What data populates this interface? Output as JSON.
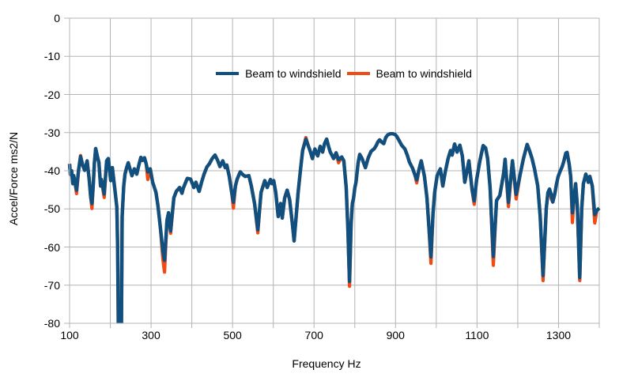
{
  "chart_data": {
    "type": "line",
    "title": "",
    "xlabel": "Frequency Hz",
    "ylabel": "Accel/Force ms2/N",
    "xlim": [
      100,
      1400
    ],
    "ylim": [
      -80,
      0
    ],
    "x_grid_step": 100,
    "y_grid_step": 10,
    "x_ticks": [
      100,
      300,
      500,
      700,
      900,
      1100,
      1300
    ],
    "y_ticks": [
      0,
      -10,
      -20,
      -30,
      -40,
      -50,
      -60,
      -70,
      -80
    ],
    "grid": true,
    "legend_position": "top-center",
    "grid_color": "#b4b4b4",
    "x": [
      100,
      102,
      105,
      108,
      110,
      114,
      117,
      122,
      127,
      132,
      137,
      143,
      148,
      152,
      155,
      158,
      161,
      164,
      169,
      172,
      176,
      178,
      185,
      191,
      195,
      201,
      205,
      211,
      216,
      218,
      220,
      227,
      229,
      233,
      236,
      240,
      244,
      249,
      253,
      259,
      265,
      270,
      275,
      279,
      284,
      288,
      292,
      298,
      304,
      312,
      317,
      323,
      329,
      333,
      339,
      343,
      348,
      356,
      362,
      370,
      376,
      379,
      385,
      389,
      397,
      405,
      410,
      418,
      424,
      430,
      437,
      443,
      450,
      457,
      463,
      469,
      476,
      482,
      486,
      492,
      498,
      502,
      507,
      511,
      519,
      525,
      531,
      540,
      546,
      554,
      562,
      570,
      579,
      585,
      593,
      597,
      601,
      606,
      612,
      618,
      622,
      628,
      634,
      640,
      647,
      651,
      656,
      661,
      667,
      672,
      680,
      686,
      690,
      696,
      702,
      709,
      715,
      721,
      726,
      731,
      736,
      740,
      748,
      754,
      760,
      768,
      773,
      779,
      783,
      787,
      791,
      794,
      797,
      800,
      803,
      808,
      812,
      818,
      826,
      833,
      840,
      848,
      853,
      857,
      861,
      866,
      871,
      876,
      881,
      887,
      893,
      899,
      903,
      909,
      915,
      923,
      929,
      934,
      942,
      948,
      952,
      958,
      963,
      971,
      977,
      982,
      987,
      992,
      996,
      1002,
      1010,
      1016,
      1022,
      1029,
      1035,
      1039,
      1045,
      1051,
      1058,
      1064,
      1070,
      1080,
      1088,
      1093,
      1099,
      1107,
      1115,
      1121,
      1126,
      1132,
      1140,
      1148,
      1156,
      1165,
      1169,
      1177,
      1187,
      1196,
      1206,
      1214,
      1223,
      1229,
      1235,
      1241,
      1249,
      1255,
      1262,
      1270,
      1274,
      1278,
      1282,
      1286,
      1291,
      1295,
      1299,
      1303,
      1309,
      1313,
      1318,
      1321,
      1326,
      1330,
      1334,
      1338,
      1342,
      1346,
      1352,
      1357,
      1361,
      1367,
      1373,
      1377,
      1383,
      1389,
      1394,
      1400
    ],
    "series": [
      {
        "name": "Beam to windshield",
        "color": "#11507e",
        "values": [
          -38.2,
          -41.0,
          -40.0,
          -43.4,
          -41.3,
          -43.5,
          -45.1,
          -40.0,
          -36.3,
          -38.5,
          -39.9,
          -37.4,
          -42.0,
          -47.0,
          -48.6,
          -44.0,
          -38.0,
          -34.2,
          -36.6,
          -37.8,
          -44.0,
          -42.3,
          -46.1,
          -37.4,
          -36.8,
          -42.6,
          -39.2,
          -44.7,
          -49.6,
          -60.0,
          -84.0,
          -84.0,
          -52.0,
          -44.0,
          -40.9,
          -39.2,
          -37.9,
          -39.8,
          -41.3,
          -39.5,
          -40.9,
          -38.5,
          -36.5,
          -37.3,
          -36.6,
          -38.2,
          -40.3,
          -39.5,
          -43.0,
          -45.7,
          -49.2,
          -55.0,
          -61.0,
          -63.5,
          -53.0,
          -51.0,
          -55.8,
          -47.1,
          -45.4,
          -44.4,
          -45.9,
          -44.6,
          -43.0,
          -42.0,
          -42.2,
          -44.4,
          -43.0,
          -45.4,
          -43.0,
          -40.9,
          -39.0,
          -38.2,
          -36.8,
          -35.9,
          -37.2,
          -38.9,
          -37.4,
          -39.2,
          -38.5,
          -41.5,
          -45.7,
          -48.3,
          -44.0,
          -42.3,
          -40.3,
          -41.0,
          -41.5,
          -41.3,
          -44.0,
          -48.6,
          -55.5,
          -45.7,
          -42.6,
          -44.4,
          -42.3,
          -43.4,
          -42.6,
          -45.7,
          -52.0,
          -48.6,
          -52.4,
          -47.1,
          -45.1,
          -47.5,
          -54.0,
          -58.4,
          -52.0,
          -45.7,
          -39.5,
          -34.7,
          -31.7,
          -33.5,
          -34.7,
          -36.8,
          -34.3,
          -36.1,
          -33.6,
          -35.1,
          -32.8,
          -31.7,
          -33.8,
          -35.1,
          -36.8,
          -35.3,
          -37.1,
          -36.4,
          -37.4,
          -44.4,
          -55.0,
          -69.0,
          -54.0,
          -48.6,
          -47.2,
          -44.5,
          -43.0,
          -38.1,
          -35.7,
          -36.8,
          -39.2,
          -36.6,
          -34.9,
          -34.2,
          -33.3,
          -32.4,
          -31.9,
          -32.5,
          -32.9,
          -31.3,
          -30.6,
          -30.3,
          -30.3,
          -30.5,
          -31.0,
          -32.1,
          -33.3,
          -34.3,
          -36.0,
          -37.7,
          -39.4,
          -41.2,
          -42.4,
          -39.5,
          -37.4,
          -41.5,
          -47.0,
          -55.0,
          -62.6,
          -51.3,
          -45.7,
          -41.3,
          -39.5,
          -44.0,
          -40.3,
          -36.8,
          -34.7,
          -35.9,
          -33.0,
          -35.1,
          -33.3,
          -36.1,
          -43.0,
          -37.4,
          -45.1,
          -47.9,
          -42.3,
          -37.4,
          -33.4,
          -34.0,
          -36.8,
          -44.4,
          -62.5,
          -47.8,
          -46.5,
          -40.9,
          -37.0,
          -48.3,
          -37.4,
          -46.2,
          -40.9,
          -36.8,
          -33.1,
          -34.8,
          -36.8,
          -39.5,
          -44.0,
          -52.0,
          -67.5,
          -49.8,
          -45.7,
          -44.8,
          -46.2,
          -48.2,
          -46.0,
          -43.5,
          -41.6,
          -40.4,
          -38.9,
          -37.5,
          -35.4,
          -35.2,
          -38.2,
          -41.6,
          -51.0,
          -47.5,
          -43.4,
          -49.0,
          -68.0,
          -50.0,
          -43.4,
          -40.9,
          -43.0,
          -41.5,
          -44.0,
          -51.5,
          -50.4,
          -49.8
        ]
      },
      {
        "name": "Beam to windshield",
        "color": "#f04a15",
        "values": [
          -38.2,
          -41.0,
          -40.0,
          -43.4,
          -41.3,
          -43.5,
          -46.0,
          -40.0,
          -36.0,
          -38.5,
          -39.9,
          -37.4,
          -42.0,
          -47.0,
          -49.9,
          -44.0,
          -38.0,
          -34.2,
          -36.6,
          -37.8,
          -44.0,
          -42.3,
          -47.0,
          -37.4,
          -36.8,
          -42.6,
          -39.2,
          -44.7,
          -49.6,
          -60.0,
          -84.0,
          -84.0,
          -52.0,
          -44.0,
          -40.9,
          -39.2,
          -37.9,
          -39.8,
          -41.3,
          -39.5,
          -40.9,
          -38.5,
          -36.5,
          -37.3,
          -36.6,
          -38.2,
          -42.3,
          -39.5,
          -43.0,
          -45.7,
          -49.2,
          -55.0,
          -63.2,
          -66.6,
          -53.0,
          -51.0,
          -56.4,
          -47.1,
          -45.4,
          -44.4,
          -45.9,
          -44.6,
          -43.0,
          -42.0,
          -42.2,
          -44.4,
          -43.0,
          -45.4,
          -43.0,
          -40.9,
          -39.0,
          -38.2,
          -36.8,
          -35.9,
          -37.2,
          -38.9,
          -37.4,
          -39.2,
          -38.5,
          -41.5,
          -45.7,
          -49.8,
          -44.0,
          -42.3,
          -40.3,
          -41.0,
          -41.5,
          -41.3,
          -44.0,
          -48.6,
          -56.3,
          -45.7,
          -42.6,
          -44.4,
          -42.3,
          -43.4,
          -42.6,
          -45.7,
          -52.0,
          -48.6,
          -52.4,
          -47.1,
          -45.1,
          -47.5,
          -54.0,
          -58.4,
          -52.0,
          -45.7,
          -39.5,
          -34.7,
          -31.3,
          -33.5,
          -34.7,
          -36.8,
          -34.3,
          -36.1,
          -33.6,
          -35.1,
          -32.8,
          -31.7,
          -33.8,
          -35.1,
          -36.8,
          -35.3,
          -37.9,
          -36.4,
          -37.4,
          -44.4,
          -55.0,
          -70.3,
          -54.0,
          -48.6,
          -47.2,
          -44.5,
          -43.0,
          -38.1,
          -35.7,
          -36.8,
          -39.2,
          -36.6,
          -34.9,
          -34.2,
          -33.3,
          -32.4,
          -31.9,
          -32.5,
          -32.9,
          -31.3,
          -30.6,
          -30.3,
          -30.3,
          -30.5,
          -31.0,
          -32.1,
          -33.3,
          -34.3,
          -36.0,
          -37.7,
          -39.4,
          -41.2,
          -43.2,
          -39.5,
          -37.4,
          -41.5,
          -47.0,
          -55.0,
          -64.3,
          -51.3,
          -45.7,
          -41.3,
          -39.5,
          -44.0,
          -40.3,
          -36.8,
          -34.7,
          -35.9,
          -33.0,
          -35.1,
          -33.3,
          -36.1,
          -43.0,
          -37.4,
          -45.1,
          -48.8,
          -42.3,
          -37.4,
          -33.4,
          -34.0,
          -36.8,
          -44.4,
          -64.8,
          -47.8,
          -46.5,
          -40.9,
          -37.0,
          -49.4,
          -37.4,
          -47.4,
          -40.9,
          -36.8,
          -33.1,
          -34.8,
          -36.8,
          -39.5,
          -44.0,
          -52.0,
          -68.8,
          -49.8,
          -45.7,
          -44.8,
          -47.3,
          -48.2,
          -46.0,
          -43.5,
          -41.6,
          -40.4,
          -38.9,
          -37.5,
          -35.4,
          -35.2,
          -38.2,
          -41.6,
          -53.6,
          -47.5,
          -43.4,
          -49.0,
          -68.8,
          -50.0,
          -43.4,
          -40.9,
          -43.0,
          -41.5,
          -44.0,
          -53.7,
          -50.4,
          -49.8
        ]
      }
    ]
  }
}
